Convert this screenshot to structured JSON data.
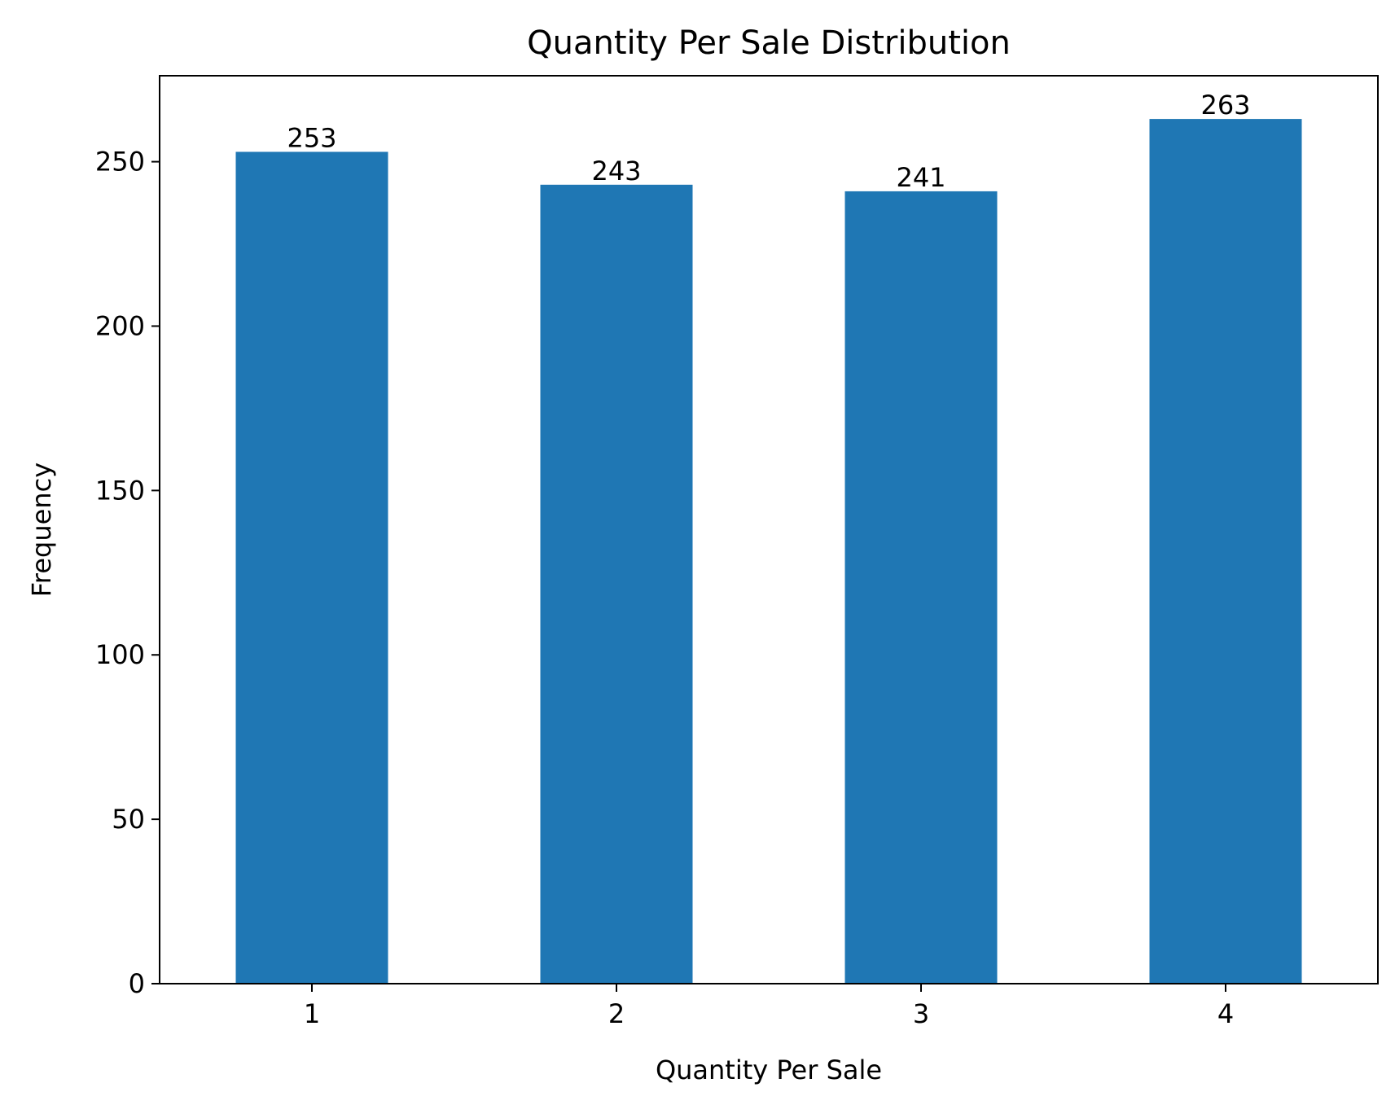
{
  "chart_data": {
    "type": "bar",
    "title": "Quantity Per Sale Distribution",
    "xlabel": "Quantity Per Sale",
    "ylabel": "Frequency",
    "categories": [
      "1",
      "2",
      "3",
      "4"
    ],
    "values": [
      253,
      243,
      241,
      263
    ],
    "ylim": [
      0,
      276.15
    ],
    "yticks": [
      0,
      50,
      100,
      150,
      200,
      250
    ],
    "bar_color": "#1f77b4",
    "grid": false,
    "legend": false
  }
}
